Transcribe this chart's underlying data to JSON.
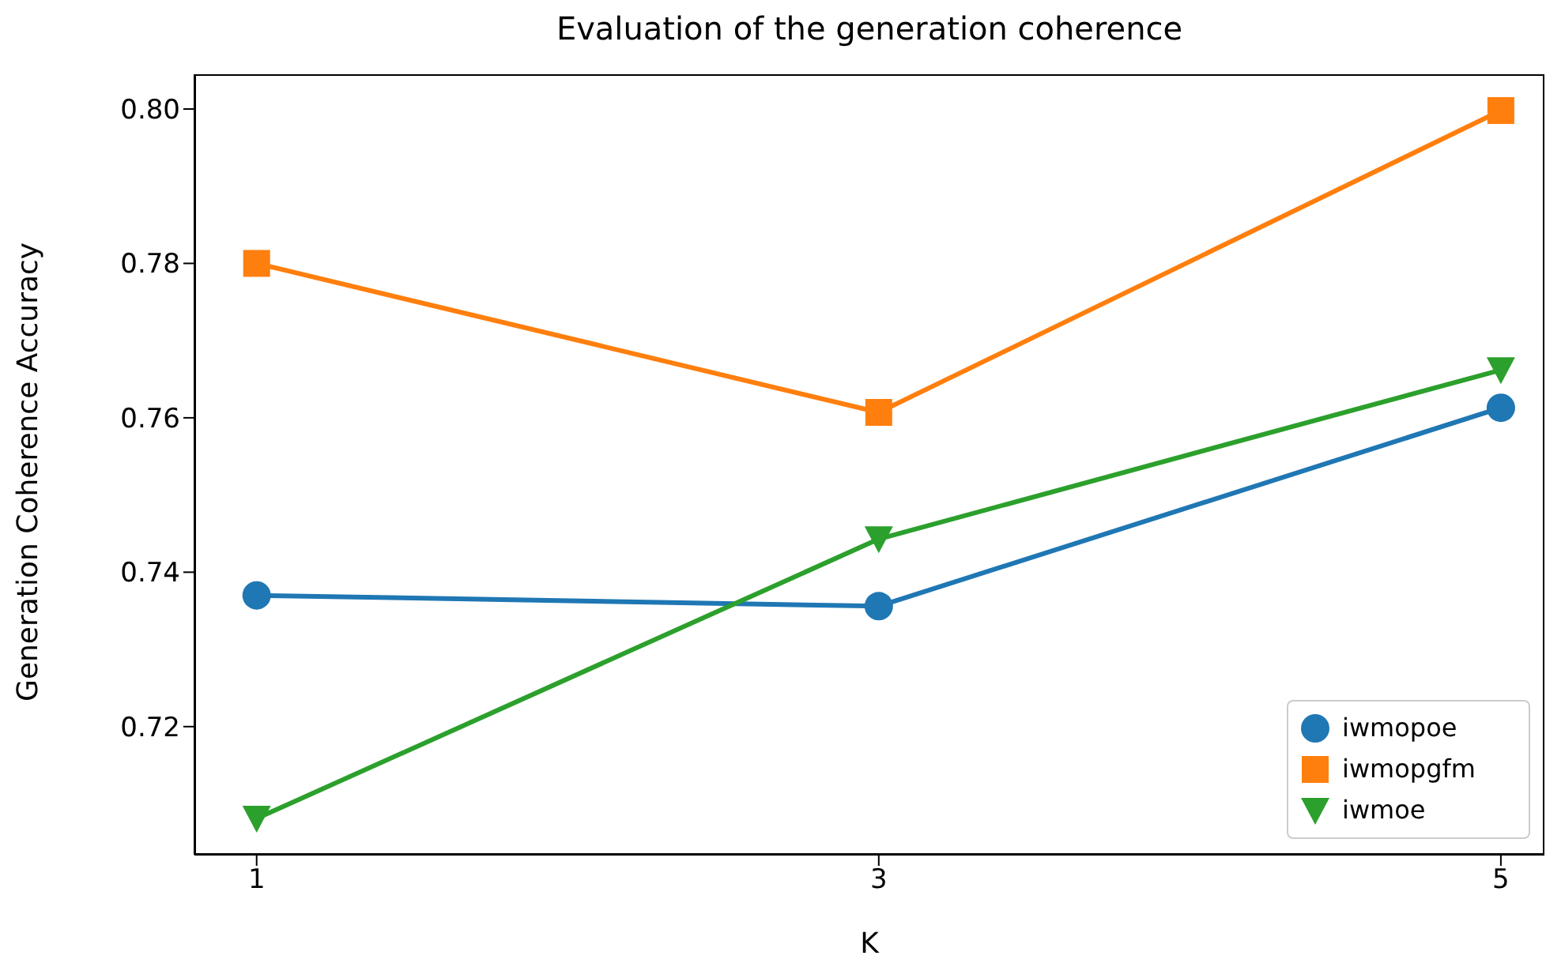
{
  "chart_data": {
    "type": "line",
    "title": "Evaluation of the generation coherence",
    "xlabel": "K",
    "ylabel": "Generation Coherence Accuracy",
    "x": [
      1,
      3,
      5
    ],
    "series": [
      {
        "name": "iwmopoe",
        "color": "#1f77b4",
        "marker": "circle",
        "values": [
          0.737,
          0.7356,
          0.7613
        ]
      },
      {
        "name": "iwmopgfm",
        "color": "#ff7f0e",
        "marker": "square",
        "values": [
          0.78,
          0.7607,
          0.7998
        ]
      },
      {
        "name": "iwmoe",
        "color": "#2ca02c",
        "marker": "triangle",
        "values": [
          0.7081,
          0.7443,
          0.7662
        ]
      }
    ],
    "xlim": [
      0.8,
      5.14
    ],
    "xticks": [
      1,
      3,
      5
    ],
    "ylim": [
      0.7034,
      0.8045
    ],
    "yticks": [
      {
        "value": 0.72,
        "label": "0.72"
      },
      {
        "value": 0.74,
        "label": "0.74"
      },
      {
        "value": 0.76,
        "label": "0.76"
      },
      {
        "value": 0.78,
        "label": "0.78"
      },
      {
        "value": 0.8,
        "label": "0.80"
      }
    ],
    "grid": false,
    "legend": "bottom right",
    "line_style": "solid"
  }
}
